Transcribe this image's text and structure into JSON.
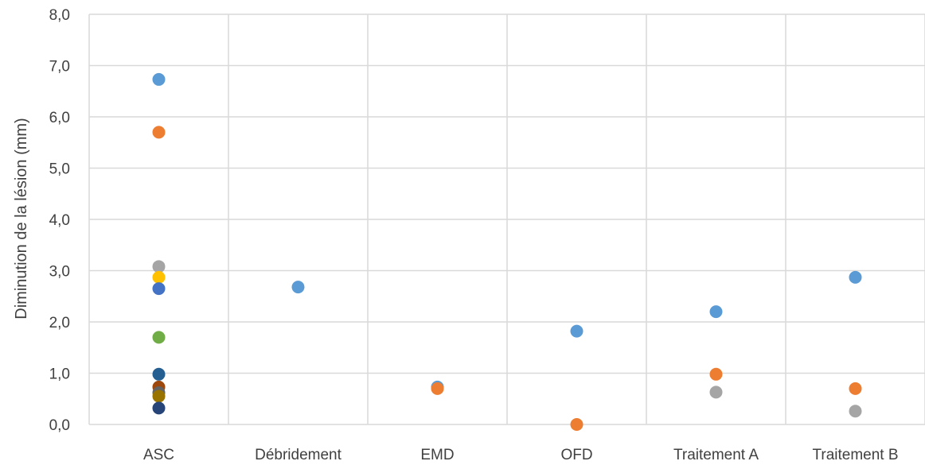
{
  "chart_data": {
    "type": "scatter",
    "title": "",
    "xlabel": "",
    "ylabel": "Diminution de la lésion (mm)",
    "categories": [
      "ASC",
      "Débridement",
      "EMD",
      "OFD",
      "Traitement A",
      "Traitement B"
    ],
    "ylim": [
      0,
      8
    ],
    "yticks": [
      "0,0",
      "1,0",
      "2,0",
      "3,0",
      "4,0",
      "5,0",
      "6,0",
      "7,0",
      "8,0"
    ],
    "grid": true,
    "legend": "none",
    "points": [
      {
        "category": "ASC",
        "y": 6.73,
        "color": "#5b9bd5"
      },
      {
        "category": "ASC",
        "y": 5.7,
        "color": "#ed7d31"
      },
      {
        "category": "ASC",
        "y": 3.08,
        "color": "#a5a5a5"
      },
      {
        "category": "ASC",
        "y": 2.87,
        "color": "#ffc000"
      },
      {
        "category": "ASC",
        "y": 2.65,
        "color": "#4472c4"
      },
      {
        "category": "ASC",
        "y": 1.7,
        "color": "#70ad47"
      },
      {
        "category": "ASC",
        "y": 0.98,
        "color": "#255e91"
      },
      {
        "category": "ASC",
        "y": 0.73,
        "color": "#9e480e"
      },
      {
        "category": "ASC",
        "y": 0.62,
        "color": "#636363"
      },
      {
        "category": "ASC",
        "y": 0.55,
        "color": "#997300"
      },
      {
        "category": "ASC",
        "y": 0.32,
        "color": "#264478"
      },
      {
        "category": "Débridement",
        "y": 2.68,
        "color": "#5b9bd5"
      },
      {
        "category": "EMD",
        "y": 0.73,
        "color": "#5b9bd5"
      },
      {
        "category": "EMD",
        "y": 0.7,
        "color": "#ed7d31"
      },
      {
        "category": "OFD",
        "y": 1.82,
        "color": "#5b9bd5"
      },
      {
        "category": "OFD",
        "y": 0.0,
        "color": "#ed7d31"
      },
      {
        "category": "Traitement A",
        "y": 2.2,
        "color": "#5b9bd5"
      },
      {
        "category": "Traitement A",
        "y": 0.98,
        "color": "#ed7d31"
      },
      {
        "category": "Traitement A",
        "y": 0.63,
        "color": "#a5a5a5"
      },
      {
        "category": "Traitement B",
        "y": 2.87,
        "color": "#5b9bd5"
      },
      {
        "category": "Traitement B",
        "y": 0.7,
        "color": "#ed7d31"
      },
      {
        "category": "Traitement B",
        "y": 0.26,
        "color": "#a5a5a5"
      }
    ]
  }
}
